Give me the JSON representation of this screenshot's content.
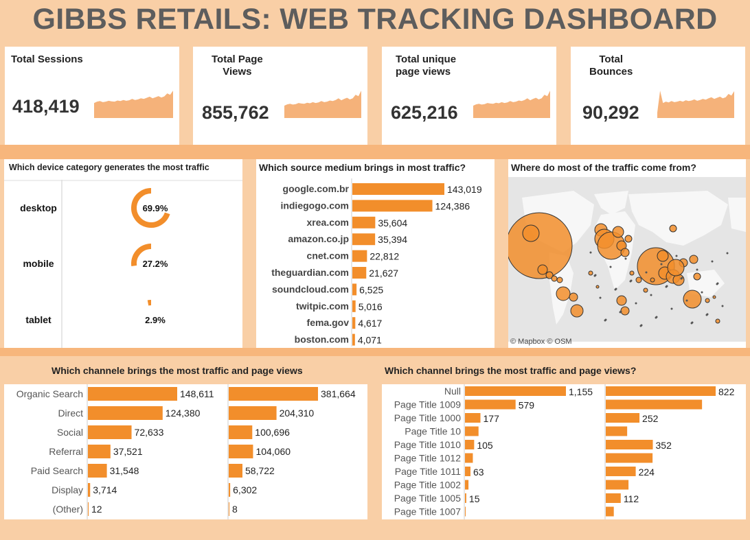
{
  "title": "GIBBS RETAILS: WEB TRACKING DASHBOARD",
  "kpis": [
    {
      "label_lines": [
        "Total Sessions"
      ],
      "value": "418,419",
      "spark": [
        0.55,
        0.6,
        0.62,
        0.58,
        0.6,
        0.63,
        0.61,
        0.6,
        0.64,
        0.62,
        0.66,
        0.63,
        0.65,
        0.7,
        0.66,
        0.68,
        0.72,
        0.7,
        0.74,
        0.78,
        0.72,
        0.76,
        0.8,
        0.75,
        0.79,
        0.9,
        0.85,
        1.0
      ]
    },
    {
      "label_lines": [
        "Total Page",
        "Views"
      ],
      "value": "855,762",
      "spark": [
        0.45,
        0.5,
        0.52,
        0.49,
        0.51,
        0.55,
        0.53,
        0.52,
        0.56,
        0.54,
        0.58,
        0.55,
        0.57,
        0.62,
        0.58,
        0.6,
        0.64,
        0.62,
        0.66,
        0.72,
        0.65,
        0.7,
        0.74,
        0.68,
        0.72,
        0.85,
        0.8,
        1.0
      ]
    },
    {
      "label_lines": [
        "Total unique",
        "page views"
      ],
      "value": "625,216",
      "spark": [
        0.45,
        0.5,
        0.52,
        0.49,
        0.51,
        0.55,
        0.53,
        0.52,
        0.56,
        0.54,
        0.58,
        0.55,
        0.57,
        0.62,
        0.58,
        0.6,
        0.64,
        0.62,
        0.66,
        0.72,
        0.65,
        0.7,
        0.74,
        0.68,
        0.72,
        0.85,
        0.8,
        1.0
      ]
    },
    {
      "label_lines": [
        "Total",
        "Bounces"
      ],
      "value": "90,292",
      "spark": [
        0.2,
        1.0,
        0.55,
        0.6,
        0.57,
        0.62,
        0.58,
        0.6,
        0.63,
        0.6,
        0.65,
        0.62,
        0.64,
        0.68,
        0.63,
        0.66,
        0.7,
        0.67,
        0.72,
        0.76,
        0.7,
        0.74,
        0.78,
        0.72,
        0.76,
        0.88,
        0.82,
        0.98
      ]
    }
  ],
  "device_panel": {
    "title": "Which device category generates the most traffic",
    "items": [
      {
        "label": "desktop",
        "pct": 69.9,
        "pct_label": "69.9%"
      },
      {
        "label": "mobile",
        "pct": 27.2,
        "pct_label": "27.2%"
      },
      {
        "label": "tablet",
        "pct": 2.9,
        "pct_label": "2.9%"
      }
    ]
  },
  "source_panel": {
    "title": "Which source medium brings in most traffic?"
  },
  "map_panel": {
    "title": "Where do most of the traffic come from?",
    "attribution": "© Mapbox © OSM"
  },
  "channel_panel": {
    "title": "Which channele brings the most traffic and page views"
  },
  "pagetitle_panel": {
    "title": "Which channel brings the most traffic and page views?"
  },
  "colors": {
    "bar": "#f28e2b",
    "spark": "#f5b27a",
    "background": "#f9cfa6"
  },
  "chart_data": [
    {
      "type": "bar",
      "title": "Which source medium brings in most traffic?",
      "categories": [
        "google.com.br",
        "indiegogo.com",
        "xrea.com",
        "amazon.co.jp",
        "cnet.com",
        "theguardian.com",
        "soundcloud.com",
        "twitpic.com",
        "fema.gov",
        "boston.com"
      ],
      "values": [
        143019,
        124386,
        35604,
        35394,
        22812,
        21627,
        6525,
        5016,
        4617,
        4071
      ],
      "labels": [
        "143,019",
        "124,386",
        "35,604",
        "35,394",
        "22,812",
        "21,627",
        "6,525",
        "5,016",
        "4,617",
        "4,071"
      ]
    },
    {
      "type": "bar",
      "title": "Which channele brings the most traffic and page views",
      "categories": [
        "Organic Search",
        "Direct",
        "Social",
        "Referral",
        "Paid Search",
        "Display",
        "(Other)"
      ],
      "series": [
        {
          "values": [
            148611,
            124380,
            72633,
            37521,
            31548,
            3714,
            12
          ],
          "labels": [
            "148,611",
            "124,380",
            "72,633",
            "37,521",
            "31,548",
            "3,714",
            "12"
          ]
        },
        {
          "values": [
            381664,
            204310,
            100696,
            104060,
            58722,
            6302,
            8
          ],
          "labels": [
            "381,664",
            "204,310",
            "100,696",
            "104,060",
            "58,722",
            "6,302",
            "8"
          ]
        }
      ]
    },
    {
      "type": "bar",
      "title": "Which channel brings the most traffic and page views?",
      "categories": [
        "Null",
        "Page Title 1009",
        "Page Title 1000",
        "Page Title 10",
        "Page Title 1010",
        "Page Title 1012",
        "Page Title 1011",
        "Page Title 1002",
        "Page Title 1005",
        "Page Title 1007"
      ],
      "series": [
        {
          "values": [
            1155,
            579,
            177,
            155,
            105,
            90,
            63,
            40,
            15,
            3
          ],
          "labels": [
            "1,155",
            "579",
            "177",
            "",
            "105",
            "",
            "63",
            "",
            "15",
            ""
          ]
        },
        {
          "values": [
            822,
            720,
            252,
            160,
            352,
            350,
            224,
            170,
            112,
            60
          ],
          "labels": [
            "822",
            "",
            "252",
            "",
            "352",
            "",
            "224",
            "",
            "112",
            ""
          ]
        }
      ]
    },
    {
      "type": "pie",
      "title": "Which device category generates the most traffic",
      "categories": [
        "desktop",
        "mobile",
        "tablet"
      ],
      "values": [
        69.9,
        27.2,
        2.9
      ]
    }
  ]
}
